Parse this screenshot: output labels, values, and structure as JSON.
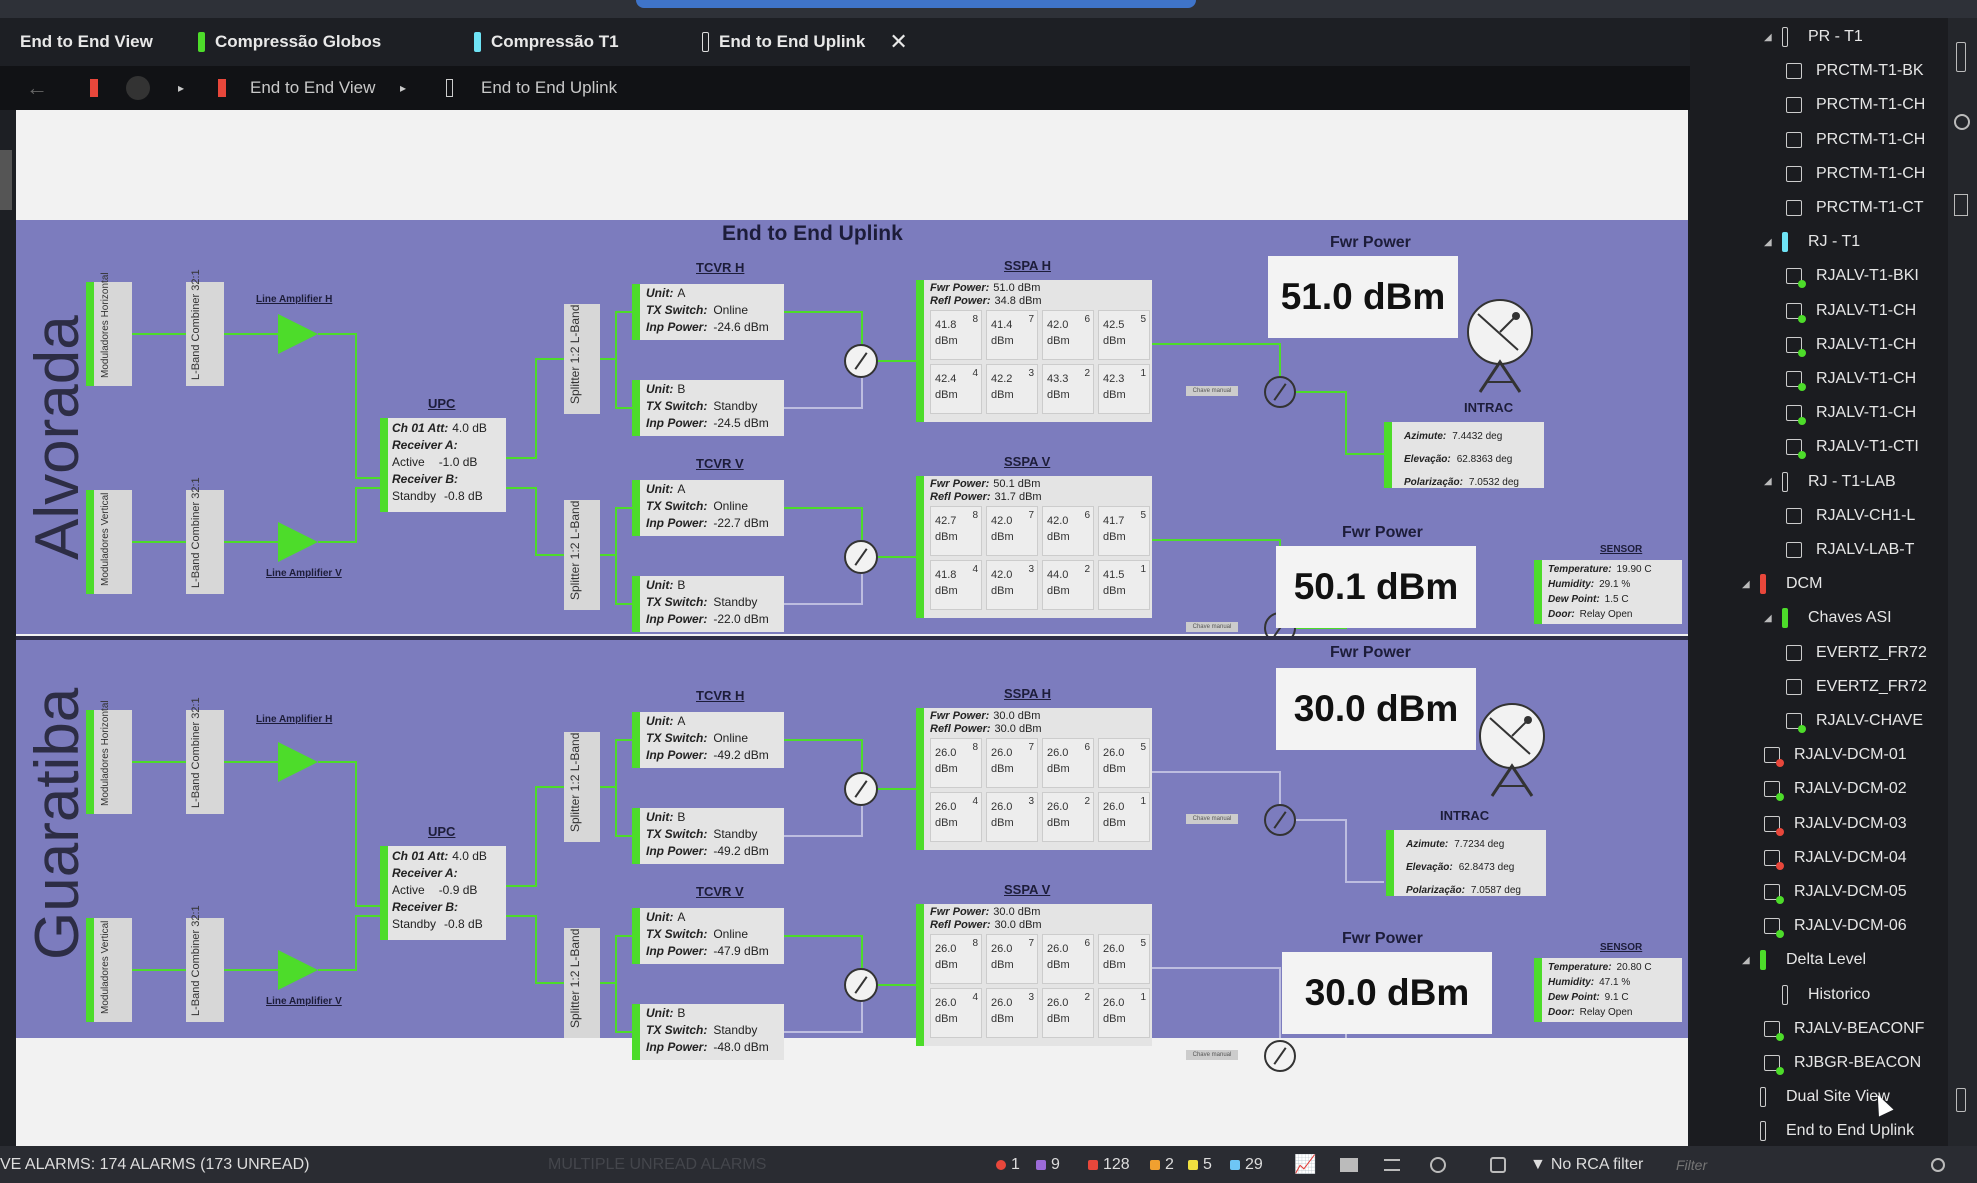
{
  "tabs": [
    {
      "label": "End to End View",
      "indicator": ""
    },
    {
      "label": "Compressão Globos",
      "indicator": "#4ddc2a"
    },
    {
      "label": "Compressão T1",
      "indicator": "#6ee3f5"
    },
    {
      "label": "End to End Uplink",
      "indicator": "outline",
      "active": true,
      "close": "✕"
    }
  ],
  "toolbar": {
    "back": "←",
    "crumb1": "End to End View",
    "sep": "▸",
    "crumb2": "End to End Uplink"
  },
  "diagram": {
    "title": "End to End Uplink",
    "line_amp_h": "Line Amplifier H",
    "line_amp_v": "Line Amplifier V",
    "mod_h": "Moduladores Horizontal",
    "mod_v": "Moduladores Vertical",
    "combiner": "L-Band Combiner 32:1",
    "splitter": "Splitter 1:2 L-Band",
    "upc_title": "UPC",
    "tcvr_h": "TCVR H",
    "tcvr_v": "TCVR V",
    "sspa_h": "SSPA H",
    "sspa_v": "SSPA V",
    "fwr_label": "Fwr Power",
    "intrac_title": "INTRAC",
    "sensor_title": "SENSOR",
    "chave": "Chave manual",
    "lbl_ch01": "Ch 01 Att:",
    "lbl_recA": "Receiver A:",
    "lbl_recB": "Receiver B:",
    "lbl_unit": "Unit:",
    "lbl_txsw": "TX Switch:",
    "lbl_inp": "Inp Power:",
    "lbl_fwr": "Fwr Power:",
    "lbl_refl": "Refl Power:",
    "lbl_az": "Azimute:",
    "lbl_el": "Elevação:",
    "lbl_pol": "Polarização:",
    "lbl_temp": "Temperature:",
    "lbl_hum": "Humidity:",
    "lbl_dew": "Dew Point:",
    "lbl_door": "Door:"
  },
  "sites": [
    {
      "name": "Alvorada",
      "upc": {
        "att": "4.0 dB",
        "recA_state": "Active",
        "recA_val": "-1.0 dB",
        "recB_state": "Standby",
        "recB_val": "-0.8 dB"
      },
      "tcvr_h": [
        {
          "unit": "A",
          "sw": "Online",
          "inp": "-24.6 dBm"
        },
        {
          "unit": "B",
          "sw": "Standby",
          "inp": "-24.5 dBm"
        }
      ],
      "tcvr_v": [
        {
          "unit": "A",
          "sw": "Online",
          "inp": "-22.7 dBm"
        },
        {
          "unit": "B",
          "sw": "Standby",
          "inp": "-22.0 dBm"
        }
      ],
      "sspa_h": {
        "fwr": "51.0 dBm",
        "refl": "34.8 dBm",
        "cells": [
          "41.8",
          "41.4",
          "42.0",
          "42.5",
          "42.4",
          "42.2",
          "43.3",
          "42.3"
        ]
      },
      "sspa_v": {
        "fwr": "50.1 dBm",
        "refl": "31.7 dBm",
        "cells": [
          "42.7",
          "42.0",
          "42.0",
          "41.7",
          "41.8",
          "42.0",
          "44.0",
          "41.5"
        ]
      },
      "fwr_h": "51.0 dBm",
      "fwr_v": "50.1 dBm",
      "intrac": {
        "az": "7.4432 deg",
        "el": "62.8363 deg",
        "pol": "7.0532 deg"
      },
      "sensor": {
        "temp": "19.90 C",
        "hum": "29.1 %",
        "dew": "1.5 C",
        "door": "Relay Open"
      }
    },
    {
      "name": "Guaratiba",
      "upc": {
        "att": "4.0 dB",
        "recA_state": "Active",
        "recA_val": "-0.9 dB",
        "recB_state": "Standby",
        "recB_val": "-0.8 dB"
      },
      "tcvr_h": [
        {
          "unit": "A",
          "sw": "Online",
          "inp": "-49.2 dBm"
        },
        {
          "unit": "B",
          "sw": "Standby",
          "inp": "-49.2 dBm"
        }
      ],
      "tcvr_v": [
        {
          "unit": "A",
          "sw": "Online",
          "inp": "-47.9 dBm"
        },
        {
          "unit": "B",
          "sw": "Standby",
          "inp": "-48.0 dBm"
        }
      ],
      "sspa_h": {
        "fwr": "30.0 dBm",
        "refl": "30.0 dBm",
        "cells": [
          "26.0",
          "26.0",
          "26.0",
          "26.0",
          "26.0",
          "26.0",
          "26.0",
          "26.0"
        ]
      },
      "sspa_v": {
        "fwr": "30.0 dBm",
        "refl": "30.0 dBm",
        "cells": [
          "26.0",
          "26.0",
          "26.0",
          "26.0",
          "26.0",
          "26.0",
          "26.0",
          "26.0"
        ]
      },
      "fwr_h": "30.0 dBm",
      "fwr_v": "30.0 dBm",
      "intrac": {
        "az": "7.7234 deg",
        "el": "62.8473 deg",
        "pol": "7.0587 deg"
      },
      "sensor": {
        "temp": "20.80 C",
        "hum": "47.1 %",
        "dew": "9.1 C",
        "door": "Relay Open"
      }
    }
  ],
  "cell_unit": "dBm",
  "tree": [
    {
      "label": "PR - T1",
      "kind": "group",
      "indent": 0,
      "bar": "outline",
      "expanded": true
    },
    {
      "label": "PRCTM-T1-BK",
      "kind": "item",
      "indent": 1,
      "dot": ""
    },
    {
      "label": "PRCTM-T1-CH",
      "kind": "item",
      "indent": 1,
      "dot": ""
    },
    {
      "label": "PRCTM-T1-CH",
      "kind": "item",
      "indent": 1,
      "dot": ""
    },
    {
      "label": "PRCTM-T1-CH",
      "kind": "item",
      "indent": 1,
      "dot": ""
    },
    {
      "label": "PRCTM-T1-CT",
      "kind": "item",
      "indent": 1,
      "dot": ""
    },
    {
      "label": "RJ - T1",
      "kind": "group",
      "indent": 0,
      "bar": "#6ee3f5",
      "expanded": true
    },
    {
      "label": "RJALV-T1-BKI",
      "kind": "item",
      "indent": 1,
      "dot": "#4ddc2a"
    },
    {
      "label": "RJALV-T1-CH",
      "kind": "item",
      "indent": 1,
      "dot": "#4ddc2a"
    },
    {
      "label": "RJALV-T1-CH",
      "kind": "item",
      "indent": 1,
      "dot": "#4ddc2a"
    },
    {
      "label": "RJALV-T1-CH",
      "kind": "item",
      "indent": 1,
      "dot": "#4ddc2a"
    },
    {
      "label": "RJALV-T1-CH",
      "kind": "item",
      "indent": 1,
      "dot": "#4ddc2a"
    },
    {
      "label": "RJALV-T1-CTI",
      "kind": "item",
      "indent": 1,
      "dot": "#4ddc2a"
    },
    {
      "label": "RJ - T1-LAB",
      "kind": "group",
      "indent": 0,
      "bar": "outline",
      "expanded": true
    },
    {
      "label": "RJALV-CH1-L",
      "kind": "item",
      "indent": 1,
      "dot": ""
    },
    {
      "label": "RJALV-LAB-T",
      "kind": "item",
      "indent": 1,
      "dot": ""
    },
    {
      "label": "DCM",
      "kind": "group",
      "indent": -1,
      "bar": "#e8473b",
      "expanded": true
    },
    {
      "label": "Chaves ASI",
      "kind": "group",
      "indent": 0,
      "bar": "#4ddc2a",
      "expanded": true
    },
    {
      "label": "EVERTZ_FR72",
      "kind": "item",
      "indent": 1,
      "dot": ""
    },
    {
      "label": "EVERTZ_FR72",
      "kind": "item",
      "indent": 1,
      "dot": ""
    },
    {
      "label": "RJALV-CHAVE",
      "kind": "item",
      "indent": 1,
      "dot": "#4ddc2a"
    },
    {
      "label": "RJALV-DCM-01",
      "kind": "item",
      "indent": 0,
      "dot": "#e8473b"
    },
    {
      "label": "RJALV-DCM-02",
      "kind": "item",
      "indent": 0,
      "dot": "#4ddc2a"
    },
    {
      "label": "RJALV-DCM-03",
      "kind": "item",
      "indent": 0,
      "dot": "#e8473b"
    },
    {
      "label": "RJALV-DCM-04",
      "kind": "item",
      "indent": 0,
      "dot": "#e8473b"
    },
    {
      "label": "RJALV-DCM-05",
      "kind": "item",
      "indent": 0,
      "dot": "#4ddc2a"
    },
    {
      "label": "RJALV-DCM-06",
      "kind": "item",
      "indent": 0,
      "dot": "#4ddc2a"
    },
    {
      "label": "Delta Level",
      "kind": "group",
      "indent": -1,
      "bar": "#4ddc2a",
      "expanded": true
    },
    {
      "label": "Historico",
      "kind": "group",
      "indent": 0,
      "bar": "outline",
      "expanded": false
    },
    {
      "label": "RJALV-BEACONF",
      "kind": "item",
      "indent": 0,
      "dot": "#4ddc2a"
    },
    {
      "label": "RJBGR-BEACON",
      "kind": "item",
      "indent": 0,
      "dot": "#4ddc2a"
    },
    {
      "label": "Dual Site View",
      "kind": "group",
      "indent": -1,
      "bar": "outline",
      "expanded": false
    },
    {
      "label": "End to End Uplink",
      "kind": "group",
      "indent": -1,
      "bar": "outline",
      "expanded": false
    }
  ],
  "statusbar": {
    "alarms": "VE ALARMS: 174 ALARMS (173 UNREAD)",
    "ghost": "MULTIPLE UNREAD ALARMS",
    "counts": [
      {
        "value": "1",
        "color": "#e8473b"
      },
      {
        "value": "9",
        "color": "#9c6bd9"
      },
      {
        "value": "128",
        "color": "#e8473b"
      },
      {
        "value": "2",
        "color": "#f0a030"
      },
      {
        "value": "5",
        "color": "#f0e040"
      },
      {
        "value": "29",
        "color": "#6ec6f5"
      }
    ],
    "rca": "No RCA filter",
    "filter_placeholder": "Filter"
  }
}
